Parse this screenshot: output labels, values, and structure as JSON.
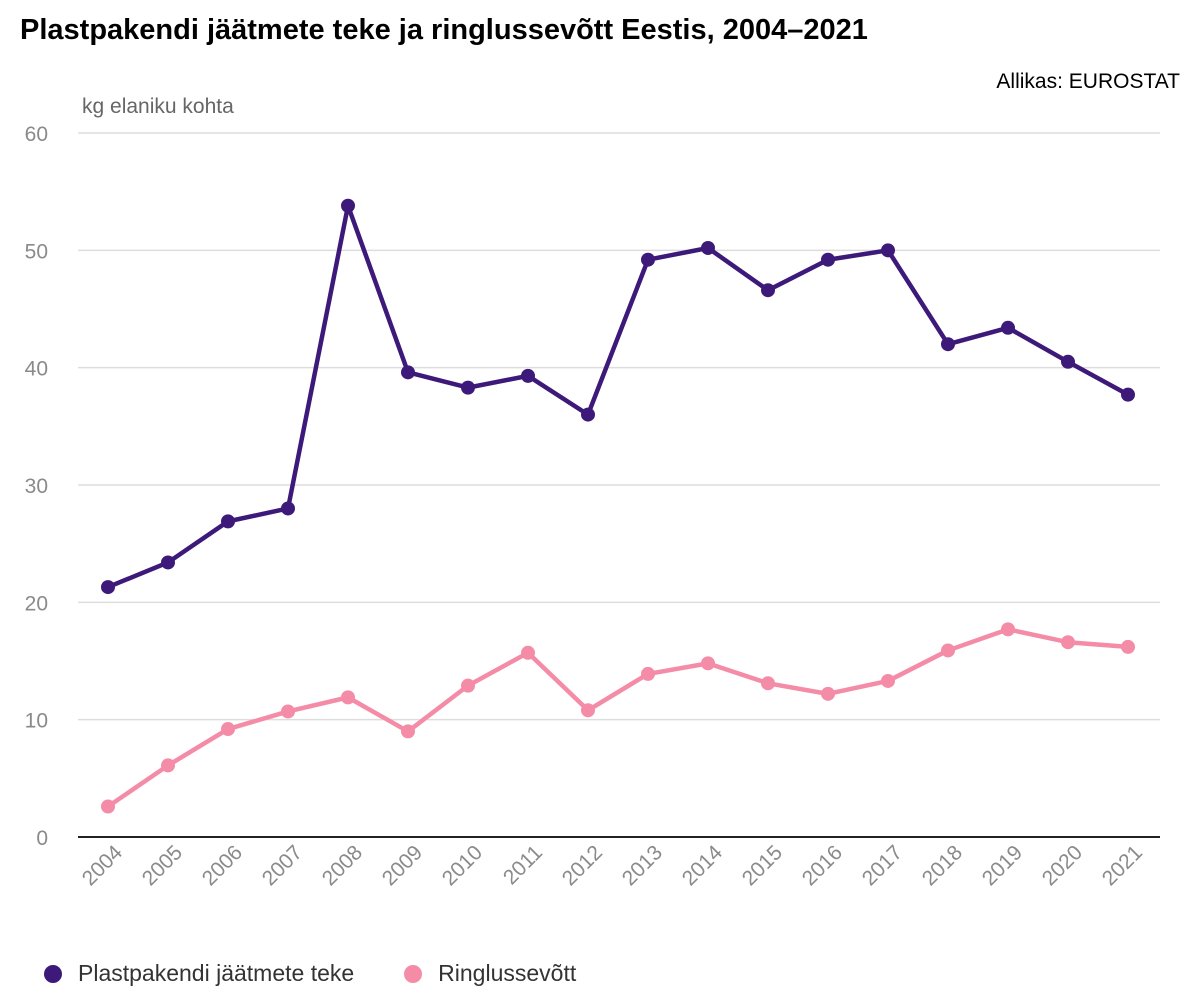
{
  "title": "Plastpakendi jäätmete teke ja ringlussevõtt Eestis, 2004–2021",
  "source": "Allikas: EUROSTAT",
  "chart_data": {
    "type": "line",
    "ylabel": "kg elaniku kohta",
    "ylim": [
      0,
      60
    ],
    "yticks": [
      0,
      10,
      20,
      30,
      40,
      50,
      60
    ],
    "grid": true,
    "legend_position": "bottom-left",
    "categories": [
      "2004",
      "2005",
      "2006",
      "2007",
      "2008",
      "2009",
      "2010",
      "2011",
      "2012",
      "2013",
      "2014",
      "2015",
      "2016",
      "2017",
      "2018",
      "2019",
      "2020",
      "2021"
    ],
    "series": [
      {
        "name": "Plastpakendi jäätmete teke",
        "color": "#3d1a7a",
        "values": [
          21.3,
          23.4,
          26.9,
          28.0,
          53.8,
          39.6,
          38.3,
          39.3,
          36.0,
          49.2,
          50.2,
          46.6,
          49.2,
          50.0,
          42.0,
          43.4,
          40.5,
          37.7
        ]
      },
      {
        "name": "Ringlussevõtt",
        "color": "#f48ca8",
        "values": [
          2.6,
          6.1,
          9.2,
          10.7,
          11.9,
          9.0,
          12.9,
          15.7,
          10.8,
          13.9,
          14.8,
          13.1,
          12.2,
          13.3,
          15.9,
          17.7,
          16.6,
          16.2
        ]
      }
    ]
  }
}
